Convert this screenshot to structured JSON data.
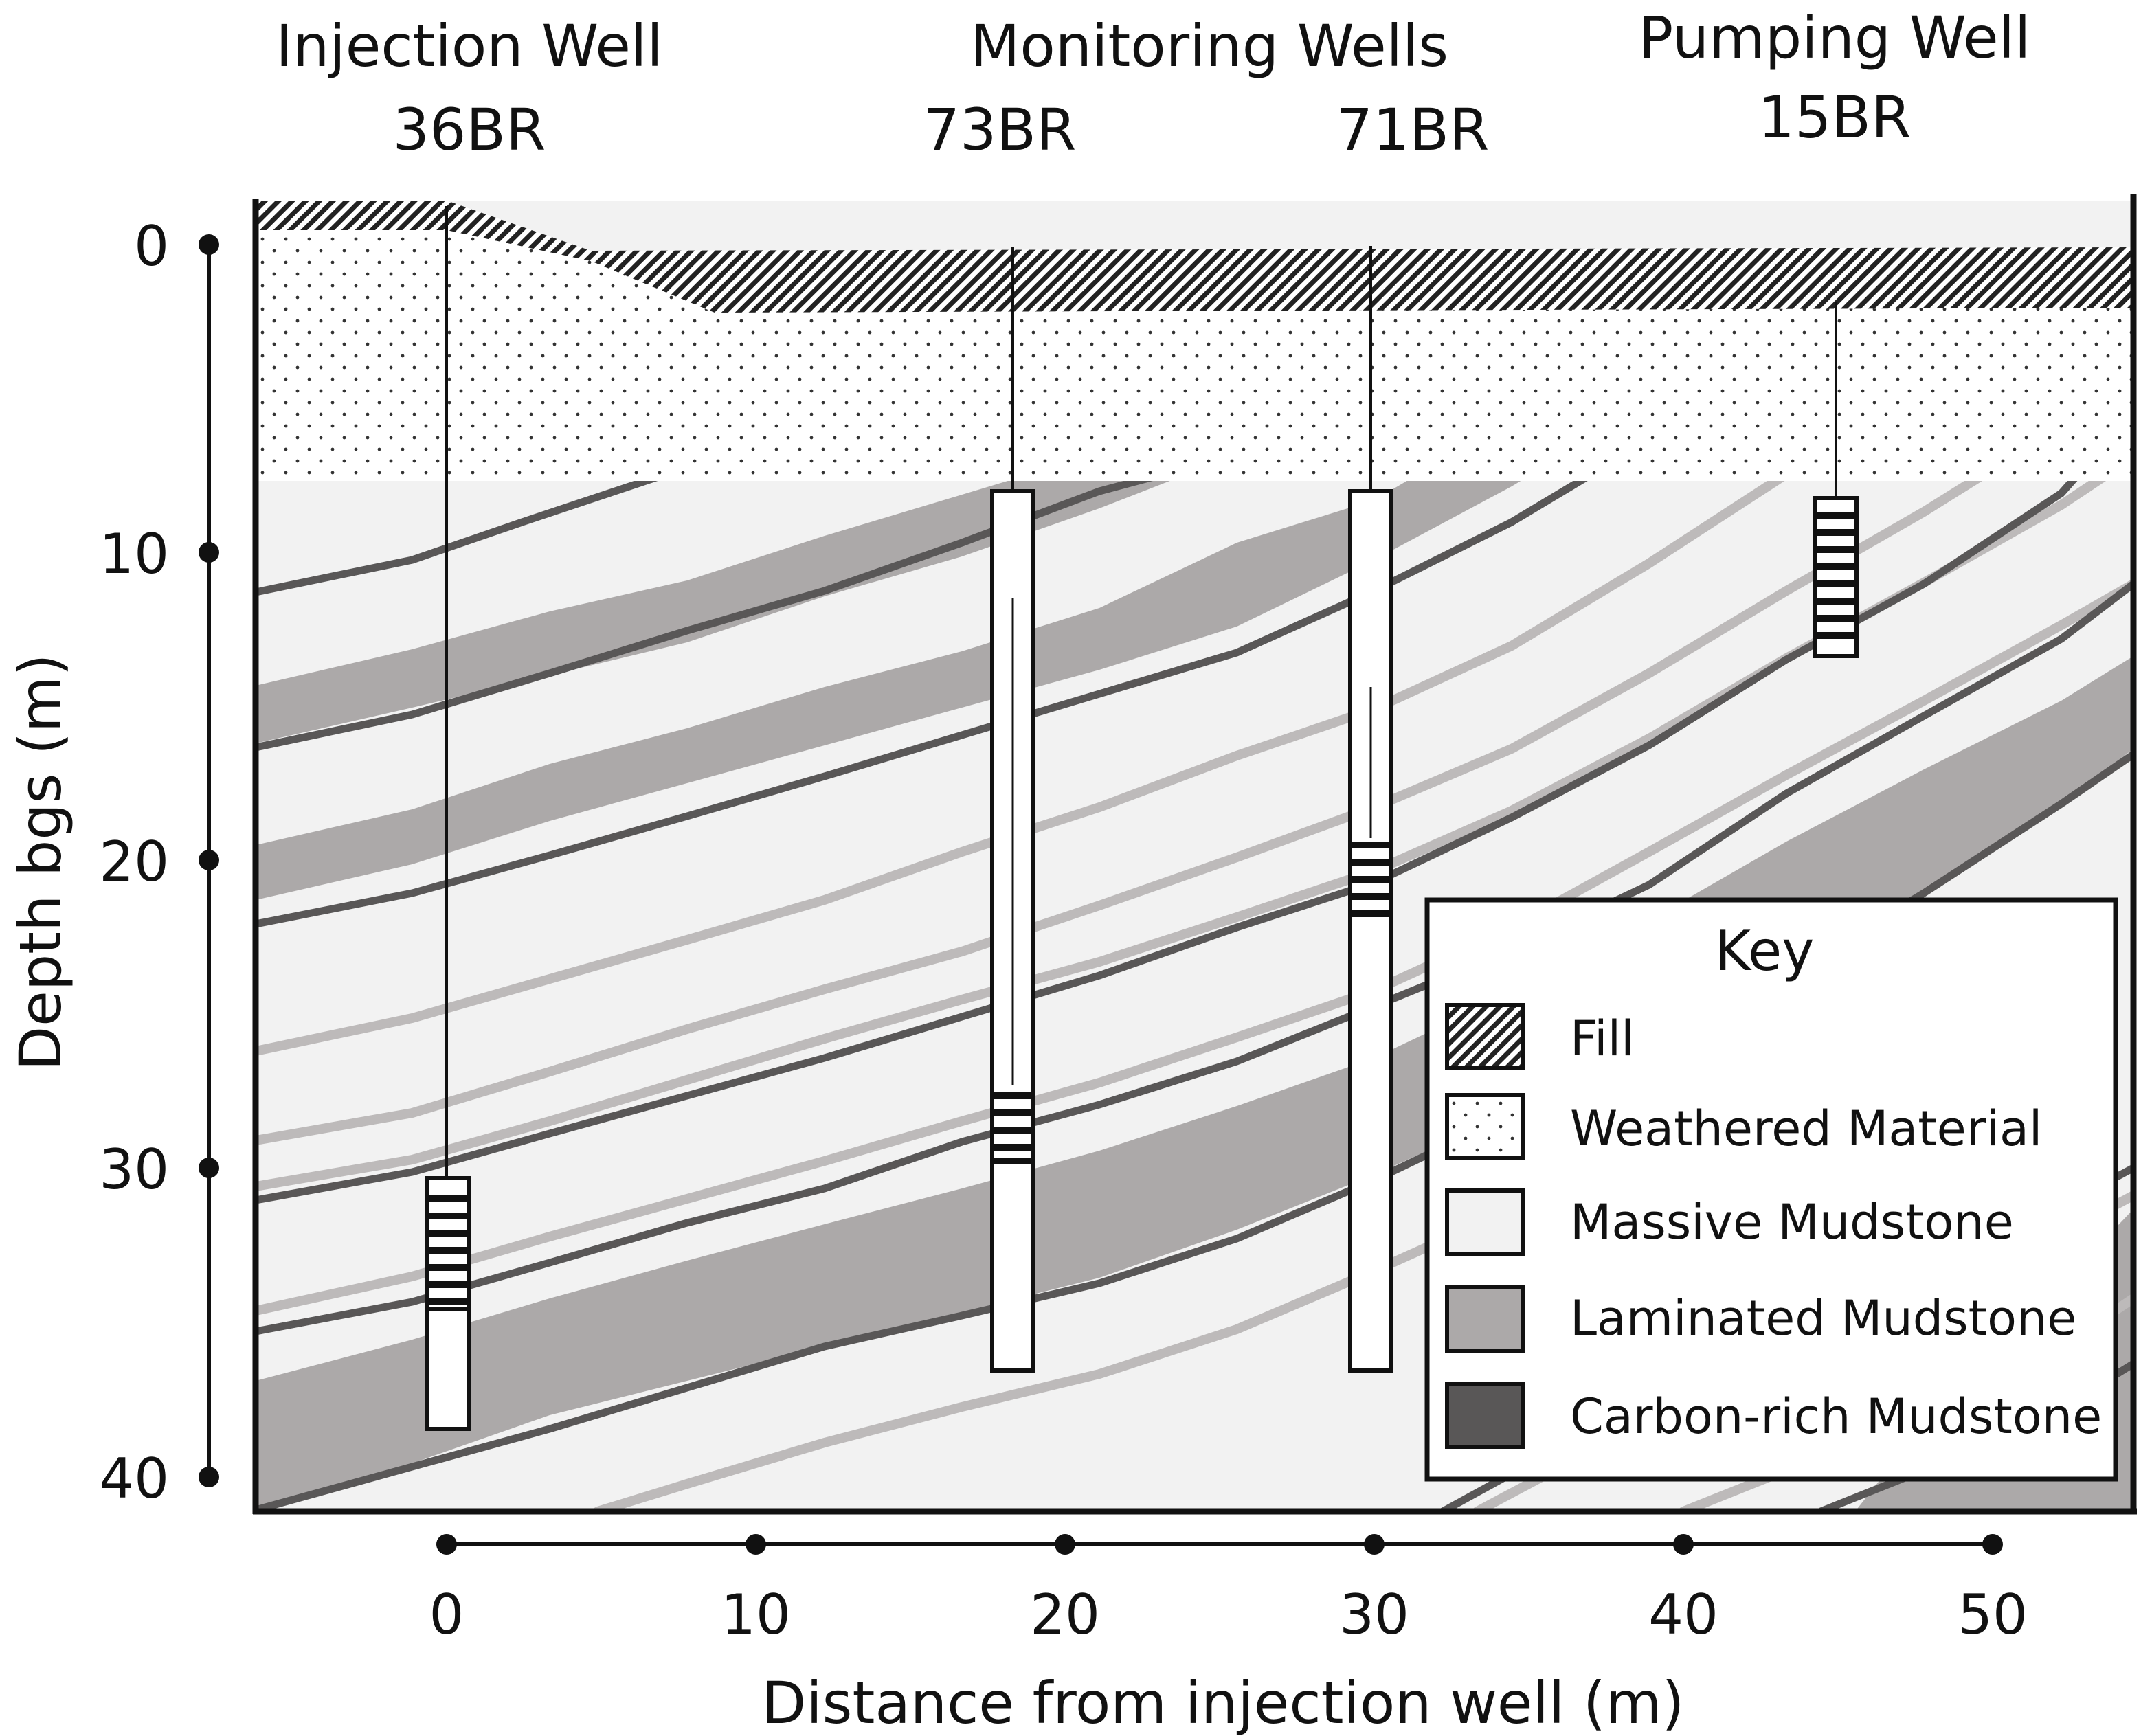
{
  "colors": {
    "massive": "#f2f2f2",
    "laminated": "#aca9a9",
    "carbon": "#595757",
    "lamination_line": "#bdbaba",
    "outline": "#111111"
  },
  "wells": [
    {
      "group": "Injection Well",
      "id": "36BR",
      "distance_m": 0,
      "casing_depth_m": [
        30.5,
        38.5
      ],
      "screen_depth_m": [
        30.5,
        34.5
      ]
    },
    {
      "group": "Monitoring Wells",
      "id": "73BR",
      "distance_m": 18.2,
      "casing_depth_m": [
        8,
        36.5
      ],
      "screen_depth_m": [
        27.5,
        30
      ]
    },
    {
      "group": "",
      "id": "71BR",
      "distance_m": 29.8,
      "casing_depth_m": [
        8,
        36.5
      ],
      "screen_depth_m": [
        19.5,
        22.5
      ]
    },
    {
      "group": "Pumping Well",
      "id": "15BR",
      "distance_m": 45,
      "casing_depth_m": [
        8.5,
        13.5
      ],
      "screen_depth_m": [
        8.5,
        13.5
      ]
    }
  ],
  "y_axis": {
    "label": "Depth bgs (m)",
    "ticks": [
      "0",
      "10",
      "20",
      "30",
      "40"
    ],
    "range": [
      0,
      41
    ]
  },
  "x_axis": {
    "label": "Distance from injection well (m)",
    "ticks": [
      "0",
      "10",
      "20",
      "30",
      "40",
      "50"
    ],
    "range": [
      -6.3,
      54.6
    ]
  },
  "legend": {
    "title": "Key",
    "items": [
      {
        "label": "Fill",
        "pattern": "hatch"
      },
      {
        "label": "Weathered Material",
        "pattern": "dots"
      },
      {
        "label": "Massive Mudstone",
        "pattern": "massive"
      },
      {
        "label": "Laminated Mudstone",
        "pattern": "laminated"
      },
      {
        "label": "Carbon-rich Mudstone",
        "pattern": "carbon"
      }
    ]
  }
}
